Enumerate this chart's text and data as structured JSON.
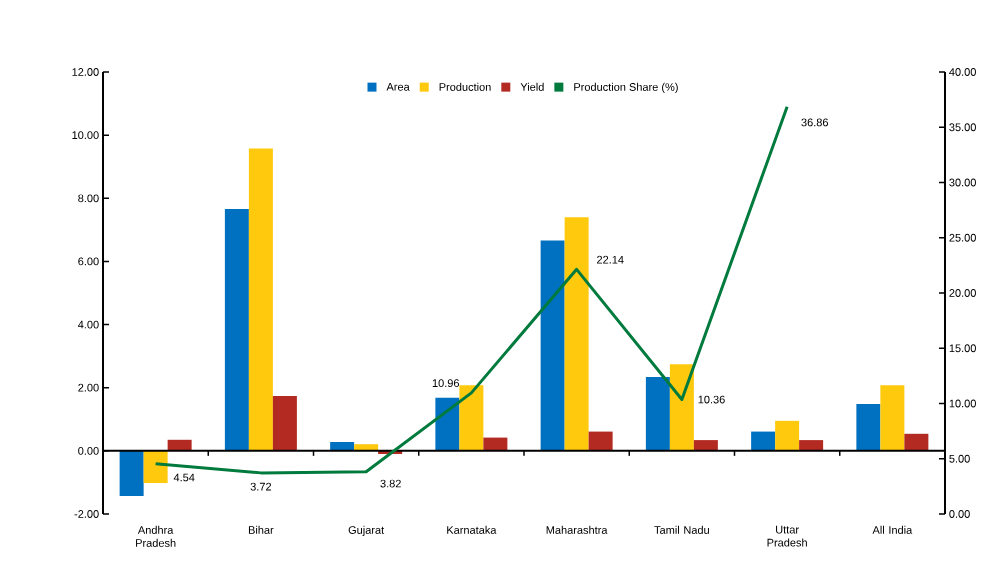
{
  "chart_data": {
    "type": "bar",
    "categories": [
      "Andhra Pradesh",
      "Bihar",
      "Gujarat",
      "Karnataka",
      "Maharashtra",
      "Tamil Nadu",
      "Uttar Pradesh",
      "All India"
    ],
    "series": [
      {
        "name": "Area",
        "color": "#0070c0",
        "values": [
          -1.43,
          7.66,
          0.28,
          1.68,
          6.66,
          2.34,
          0.61,
          1.48
        ]
      },
      {
        "name": "Production",
        "color": "#ffc90e",
        "values": [
          -1.02,
          9.58,
          0.21,
          2.08,
          7.4,
          2.74,
          0.95,
          2.08
        ]
      },
      {
        "name": "Yield",
        "color": "#b22a22",
        "values": [
          0.35,
          1.74,
          -0.1,
          0.42,
          0.61,
          0.34,
          0.34,
          0.54
        ]
      },
      {
        "name": "Production Share (%)",
        "type": "line",
        "axis": "y2",
        "color": "#007a3d",
        "line_style": "solid",
        "values": [
          4.54,
          3.72,
          3.82,
          10.96,
          22.14,
          10.36,
          36.86,
          null
        ],
        "value_labels": [
          "4.54",
          "3.72",
          "3.82",
          "10.96",
          "22.14",
          "10.36",
          "36.86",
          null
        ]
      }
    ],
    "ylim": [
      -2,
      12
    ],
    "yticks": [
      {
        "value": -2,
        "label": "-2.00"
      },
      {
        "value": 0,
        "label": "0.00"
      },
      {
        "value": 2,
        "label": "2.00"
      },
      {
        "value": 4,
        "label": "4.00"
      },
      {
        "value": 6,
        "label": "6.00"
      },
      {
        "value": 8,
        "label": "8.00"
      },
      {
        "value": 10,
        "label": "10.00"
      },
      {
        "value": 12,
        "label": "12.00"
      }
    ],
    "y2lim": [
      0,
      40
    ],
    "y2ticks": [
      {
        "value": 0,
        "label": "0.00"
      },
      {
        "value": 5,
        "label": "5.00"
      },
      {
        "value": 10,
        "label": "10.00"
      },
      {
        "value": 15,
        "label": "15.00"
      },
      {
        "value": 20,
        "label": "20.00"
      },
      {
        "value": 25,
        "label": "25.00"
      },
      {
        "value": 30,
        "label": "30.00"
      },
      {
        "value": 35,
        "label": "35.00"
      },
      {
        "value": 40,
        "label": "40.00"
      }
    ],
    "legend": "top",
    "marker": "none"
  }
}
